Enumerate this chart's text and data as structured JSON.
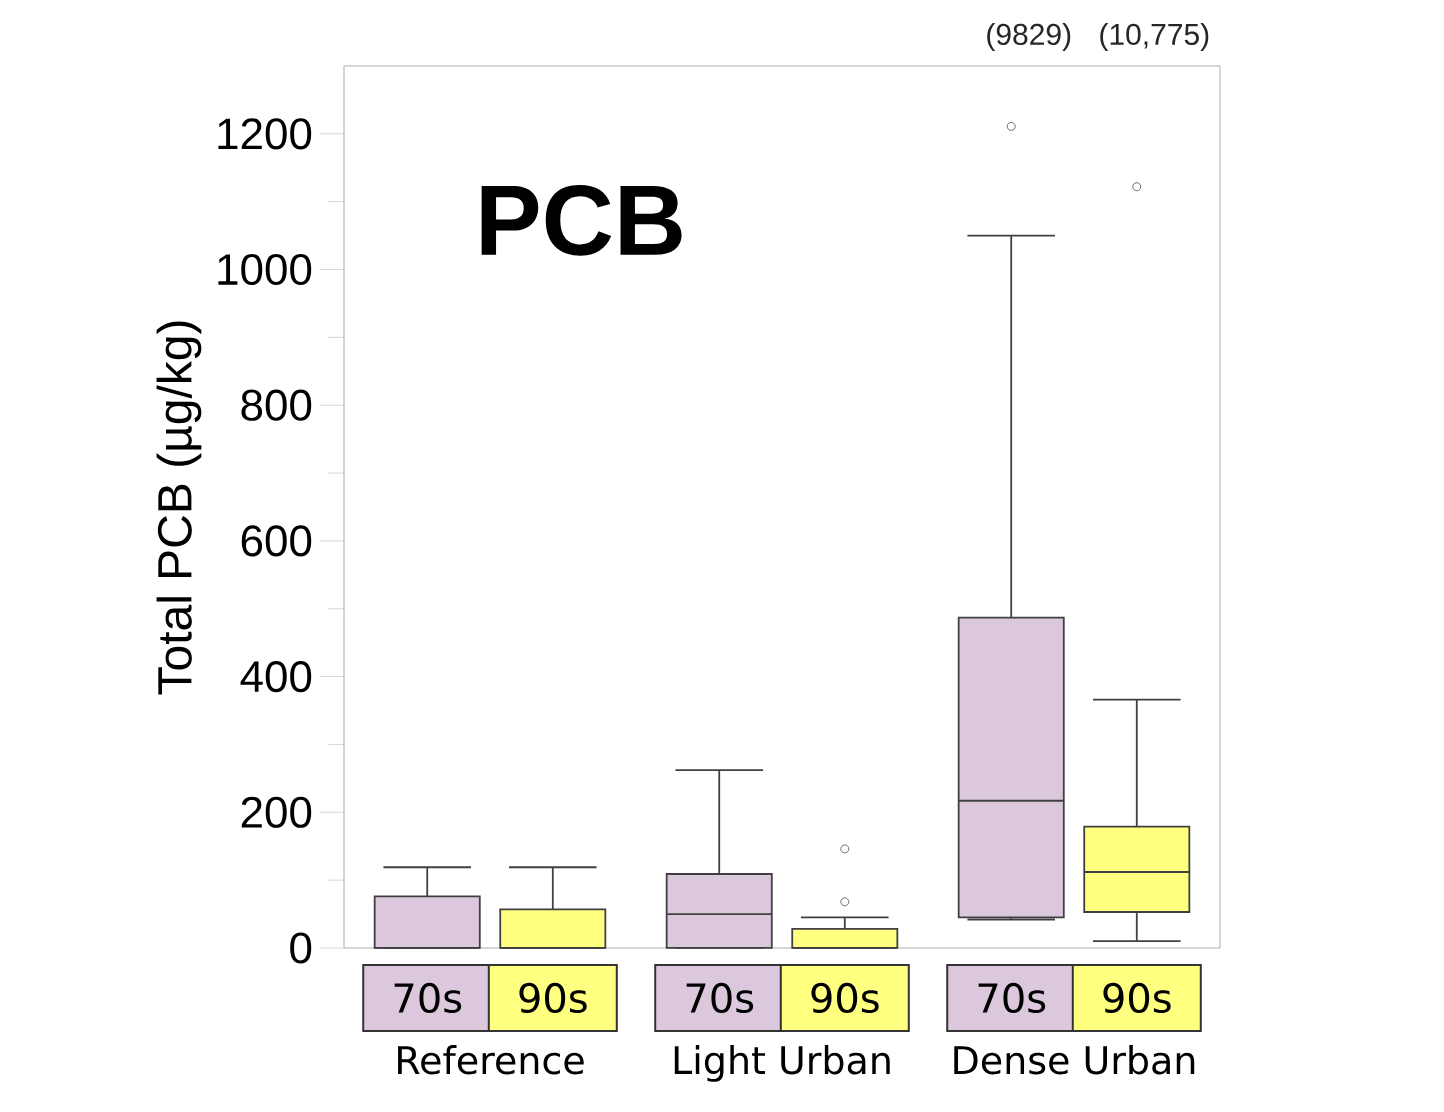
{
  "chart_data": {
    "type": "box",
    "title": "PCB",
    "ylabel": "Total PCB (µg/kg)",
    "categories": [
      "Reference",
      "Light Urban",
      "Dense Urban"
    ],
    "series": [
      {
        "name": "70s",
        "color": "#dcc8dc",
        "boxes": [
          {
            "low": 0,
            "q1": 0,
            "median": 0,
            "q3": 76,
            "high": 119
          },
          {
            "low": 0,
            "q1": 0,
            "median": 50,
            "q3": 109,
            "high": 262
          },
          {
            "low": 42,
            "q1": 45,
            "median": 217,
            "q3": 487,
            "high": 1050,
            "outliers": [
              1211
            ]
          }
        ]
      },
      {
        "name": "90s",
        "color": "#ffff80",
        "boxes": [
          {
            "low": 0,
            "q1": 0,
            "median": 0,
            "q3": 57,
            "high": 119
          },
          {
            "low": 0,
            "q1": 0,
            "median": 0,
            "q3": 28,
            "high": 45,
            "outliers": [
              68,
              146
            ]
          },
          {
            "low": 10,
            "q1": 53,
            "median": 112,
            "q3": 179,
            "high": 366,
            "outliers": [
              1122
            ]
          }
        ]
      }
    ],
    "ylim": [
      0,
      1300
    ],
    "yticks": [
      0,
      {
        "value": 100,
        "label": null
      },
      200,
      {
        "value": 300,
        "label": null
      },
      400,
      {
        "value": 500,
        "label": null
      },
      600,
      {
        "value": 700,
        "label": null
      },
      800,
      {
        "value": 900,
        "label": null
      },
      1000,
      {
        "value": 1100,
        "label": null
      },
      1200
    ],
    "grid": false,
    "legend": "bottom",
    "annotations": [
      "(9829)",
      "(10,775)"
    ]
  }
}
